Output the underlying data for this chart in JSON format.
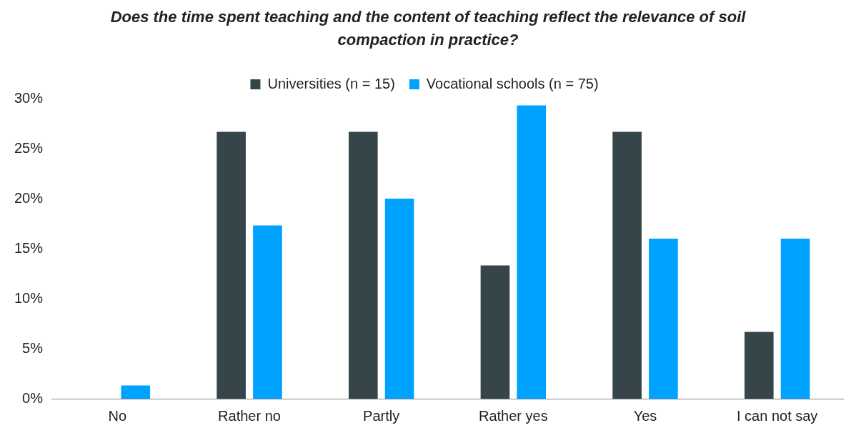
{
  "chart_data": {
    "type": "bar",
    "title": "Does the time spent teaching and the content of teaching reflect the relevance of soil compaction in practice?",
    "categories": [
      "No",
      "Rather no",
      "Partly",
      "Rather yes",
      "Yes",
      "I can not say"
    ],
    "series": [
      {
        "name": "Universities (n = 15)",
        "color": "#36454a",
        "values": [
          0,
          26.67,
          26.67,
          13.33,
          26.67,
          6.67
        ]
      },
      {
        "name": "Vocational schools (n = 75)",
        "color": "#00a2ff",
        "values": [
          1.33,
          17.33,
          20,
          29.33,
          16,
          16
        ]
      }
    ],
    "ylim": [
      0,
      30
    ],
    "yticks": [
      {
        "value": 0,
        "label": "0%"
      },
      {
        "value": 5,
        "label": "5%"
      },
      {
        "value": 10,
        "label": "10%"
      },
      {
        "value": 15,
        "label": "15%"
      },
      {
        "value": 20,
        "label": "20%"
      },
      {
        "value": 25,
        "label": "25%"
      },
      {
        "value": 30,
        "label": "30%"
      }
    ],
    "grid": false,
    "legend": "top"
  }
}
